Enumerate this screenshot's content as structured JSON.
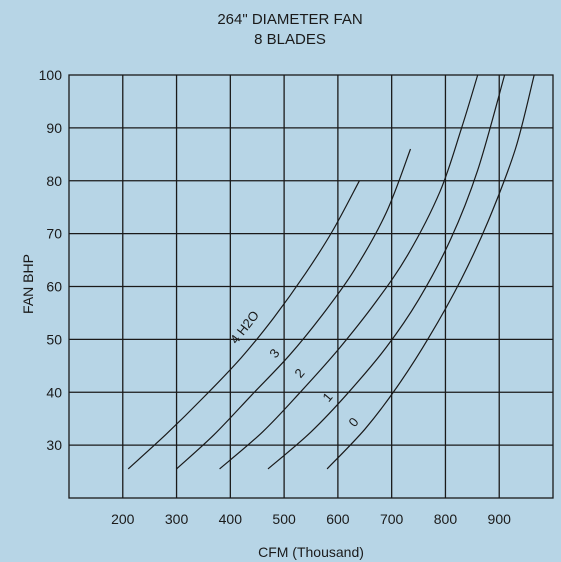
{
  "chart_data": {
    "type": "line",
    "title": "264\" DIAMETER FAN",
    "subtitle": "8 BLADES",
    "xlabel": "CFM (Thousand)",
    "ylabel": "FAN BHP",
    "xlim": [
      100,
      1000
    ],
    "ylim": [
      20,
      100
    ],
    "xticks": [
      200,
      300,
      400,
      500,
      600,
      700,
      800,
      900
    ],
    "yticks": [
      30,
      40,
      50,
      60,
      70,
      80,
      90,
      100
    ],
    "grid": true,
    "background_color": "#b7d5e6",
    "line_color": "#1a1a1a",
    "series": [
      {
        "name": "4  H2O",
        "x": [
          210,
          280,
          350,
          420,
          480,
          540,
          590,
          640
        ],
        "y": [
          25.5,
          32,
          39,
          46.5,
          54,
          62.5,
          70.5,
          80
        ]
      },
      {
        "name": "3",
        "x": [
          300,
          370,
          440,
          510,
          570,
          630,
          690,
          735
        ],
        "y": [
          25.5,
          32,
          39.5,
          47,
          54.5,
          63,
          74,
          86
        ]
      },
      {
        "name": "2",
        "x": [
          380,
          460,
          530,
          600,
          670,
          730,
          790,
          830,
          860
        ],
        "y": [
          25.5,
          32.5,
          40,
          48,
          57,
          66,
          78,
          90,
          100
        ]
      },
      {
        "name": "1",
        "x": [
          470,
          550,
          620,
          690,
          750,
          810,
          860,
          910
        ],
        "y": [
          25.5,
          32.5,
          40,
          48.5,
          57.5,
          69,
          82,
          100
        ]
      },
      {
        "name": "0",
        "x": [
          580,
          650,
          710,
          770,
          830,
          880,
          930,
          965
        ],
        "y": [
          25.5,
          33,
          41,
          50.5,
          61.5,
          72.5,
          86,
          100
        ]
      }
    ]
  }
}
